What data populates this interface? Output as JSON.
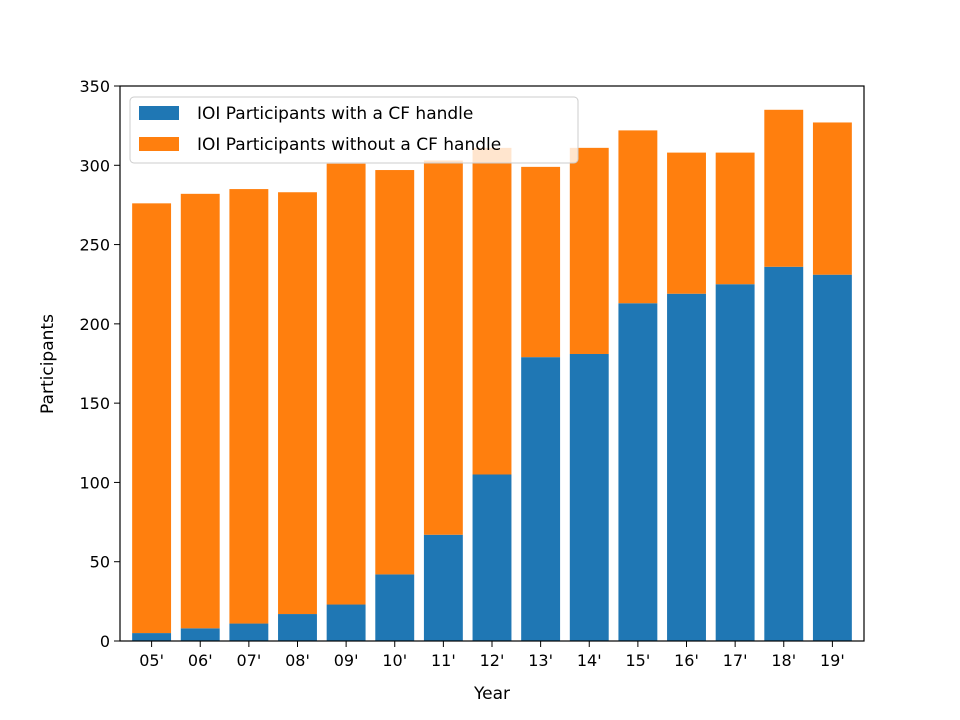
{
  "chart_data": {
    "type": "bar",
    "stacked": true,
    "categories": [
      "05'",
      "06'",
      "07'",
      "08'",
      "09'",
      "10'",
      "11'",
      "12'",
      "13'",
      "14'",
      "15'",
      "16'",
      "17'",
      "18'",
      "19'"
    ],
    "series": [
      {
        "name": "IOI Participants with a CF handle",
        "color": "#1f77b4",
        "values": [
          5,
          8,
          11,
          17,
          23,
          42,
          67,
          105,
          179,
          181,
          213,
          219,
          225,
          236,
          231
        ]
      },
      {
        "name": "IOI Participants without a CF handle",
        "color": "#ff7f0e",
        "values": [
          271,
          274,
          274,
          266,
          278,
          255,
          236,
          206,
          120,
          130,
          109,
          89,
          83,
          99,
          96
        ]
      }
    ],
    "xlabel": "Year",
    "ylabel": "Participants",
    "ylim": [
      0,
      350
    ],
    "yticks": [
      0,
      50,
      100,
      150,
      200,
      250,
      300,
      350
    ],
    "grid": false,
    "legend_position": "top-left"
  }
}
